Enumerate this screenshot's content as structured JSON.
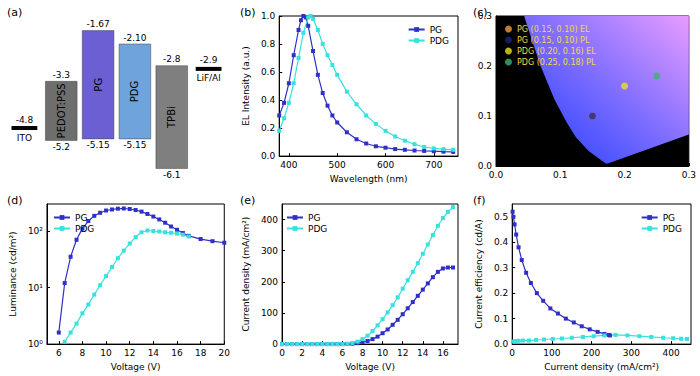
{
  "chart_data": [
    {
      "type": "energy_level",
      "title": "(a)",
      "ylim": [
        -6.6,
        -1.2
      ],
      "tick_labels": false,
      "layers": [
        {
          "name": "ITO",
          "level": -4.8,
          "color": "#000000"
        },
        {
          "name": "PEDOT:PSS",
          "lumo": -3.3,
          "homo": -5.2,
          "color": "#6e6e6e"
        },
        {
          "name": "PG",
          "lumo": -1.67,
          "homo": -5.15,
          "color": "#6b5fd3"
        },
        {
          "name": "PDG",
          "lumo": {
            "value": -2.1,
            "label": "-2.10"
          },
          "homo": -5.15,
          "color": "#6fa3dc"
        },
        {
          "name": "TPBi",
          "lumo": -2.8,
          "homo": -6.1,
          "color": "#7f7f7f"
        },
        {
          "name": "LiF/Al",
          "level": -2.9,
          "color": "#000000"
        }
      ]
    },
    {
      "type": "line",
      "title": "(b)",
      "x_label": "Wavelength (nm)",
      "y_label": "EL Intensity (a.u.)",
      "xlim": [
        380,
        750
      ],
      "xticks": [
        400,
        500,
        600,
        700
      ],
      "ylim": [
        0,
        1
      ],
      "yticks": [
        {
          "value": 0,
          "label": "0.0"
        },
        0.2,
        0.4,
        0.6,
        0.8,
        {
          "value": 1,
          "label": "1.0"
        }
      ],
      "grid": false,
      "legend": "top-right",
      "series": [
        {
          "name": "PG",
          "color": "#3030c8",
          "marker": "square",
          "x": [
            380,
            390,
            400,
            410,
            420,
            425,
            430,
            435,
            440,
            450,
            460,
            470,
            480,
            490,
            500,
            520,
            540,
            560,
            580,
            600,
            620,
            640,
            660,
            680,
            700,
            720,
            740
          ],
          "values": [
            0.29,
            0.38,
            0.52,
            0.72,
            0.9,
            0.97,
            1.0,
            0.99,
            0.93,
            0.75,
            0.58,
            0.45,
            0.36,
            0.29,
            0.24,
            0.17,
            0.12,
            0.09,
            0.07,
            0.06,
            0.05,
            0.045,
            0.04,
            0.037,
            0.035,
            0.032,
            0.03
          ]
        },
        {
          "name": "PDG",
          "color": "#38e0e0",
          "marker": "square",
          "x": [
            380,
            390,
            400,
            410,
            420,
            430,
            440,
            445,
            450,
            460,
            470,
            480,
            490,
            500,
            520,
            540,
            560,
            580,
            600,
            620,
            640,
            660,
            680,
            700,
            720,
            740
          ],
          "values": [
            0.18,
            0.27,
            0.38,
            0.52,
            0.7,
            0.88,
            0.99,
            1.0,
            0.98,
            0.9,
            0.8,
            0.72,
            0.65,
            0.58,
            0.46,
            0.37,
            0.29,
            0.23,
            0.18,
            0.14,
            0.11,
            0.085,
            0.065,
            0.055,
            0.05,
            0.045
          ]
        }
      ]
    },
    {
      "type": "cie",
      "title": "(c)",
      "xlim": [
        0,
        0.3
      ],
      "xticks": [
        {
          "value": 0,
          "label": "0.0"
        },
        0.1,
        0.2,
        0.3
      ],
      "ylim": [
        0,
        0.3
      ],
      "yticks": [
        {
          "value": 0,
          "label": "0.0"
        },
        0.1,
        0.2,
        0.3
      ],
      "legend": "top-left",
      "locus": {
        "x": [
          0.044,
          0.045,
          0.069,
          0.091,
          0.11,
          0.124,
          0.144,
          0.157,
          0.164,
          0.171,
          0.174,
          0.3
        ],
        "y": [
          0.3,
          0.295,
          0.201,
          0.133,
          0.087,
          0.058,
          0.03,
          0.018,
          0.011,
          0.005,
          0.005,
          0.063
        ]
      },
      "series": [
        {
          "name": "PG (0.15, 0.10) EL",
          "color": "#f39a3c",
          "marker": "circle",
          "x": [
            0.15
          ],
          "values": [
            0.1
          ]
        },
        {
          "name": "PG (0.15, 0.10) PL",
          "color": "#1a237e",
          "marker": "circle",
          "x": [
            0.15
          ],
          "values": [
            0.1
          ]
        },
        {
          "name": "PDG (0.20, 0.16) EL",
          "color": "#e8e020",
          "marker": "circle",
          "x": [
            0.2
          ],
          "values": [
            0.16
          ]
        },
        {
          "name": "PDG (0.25, 0.18) PL",
          "color": "#3cb371",
          "marker": "circle",
          "x": [
            0.25
          ],
          "values": [
            0.18
          ]
        }
      ]
    },
    {
      "type": "line",
      "title": "(d)",
      "x_label": "Voltage (V)",
      "y_label": "Luminance (cd/m²)",
      "log": "y",
      "xlim": [
        5,
        20
      ],
      "xticks": [
        6,
        8,
        10,
        12,
        14,
        16,
        18,
        20
      ],
      "ylim": [
        1,
        300
      ],
      "yticks": [
        {
          "value": 1,
          "label": "10⁰"
        },
        {
          "value": 10,
          "label": "10¹"
        },
        {
          "value": 100,
          "label": "10²"
        }
      ],
      "grid": false,
      "legend": "top-left",
      "series": [
        {
          "name": "PG",
          "color": "#3030c8",
          "marker": "square",
          "x": [
            6,
            6.5,
            7,
            7.5,
            8,
            8.5,
            9,
            9.5,
            10,
            10.5,
            11,
            11.5,
            12,
            12.5,
            13,
            13.5,
            14,
            14.5,
            15,
            15.5,
            16,
            16.5,
            17,
            18,
            19,
            20
          ],
          "values": [
            1.6,
            12,
            35,
            70,
            110,
            150,
            185,
            210,
            230,
            240,
            248,
            250,
            245,
            235,
            220,
            200,
            180,
            160,
            140,
            120,
            105,
            92,
            82,
            72,
            66,
            62
          ]
        },
        {
          "name": "PDG",
          "color": "#38e0e0",
          "marker": "square",
          "x": [
            6.5,
            7,
            7.5,
            8,
            8.5,
            9,
            9.5,
            10,
            10.5,
            11,
            11.5,
            12,
            12.5,
            13,
            13.5,
            14,
            14.5,
            15,
            15.5,
            16,
            16.5,
            17
          ],
          "values": [
            1.1,
            1.6,
            2.3,
            3.5,
            5,
            7.5,
            11,
            16,
            23,
            33,
            45,
            60,
            78,
            95,
            102,
            100,
            98,
            95,
            93,
            90,
            86,
            80
          ]
        }
      ]
    },
    {
      "type": "line",
      "title": "(e)",
      "x_label": "Voltage (V)",
      "y_label": "Current density (mA/cm²)",
      "xlim": [
        0,
        17.5
      ],
      "xticks": [
        0,
        2,
        4,
        6,
        8,
        10,
        12,
        14,
        16
      ],
      "ylim": [
        0,
        450
      ],
      "yticks": [
        0,
        100,
        200,
        300,
        400
      ],
      "grid": false,
      "legend": "top-left",
      "x": [
        0,
        0.5,
        1,
        1.5,
        2,
        2.5,
        3,
        3.5,
        4,
        4.5,
        5,
        5.5,
        6,
        6.5,
        7,
        7.5,
        8,
        8.5,
        9,
        9.5,
        10,
        10.5,
        11,
        11.5,
        12,
        12.5,
        13,
        13.5,
        14,
        14.5,
        15,
        15.5,
        16,
        16.5,
        17
      ],
      "series": [
        {
          "name": "PG",
          "color": "#3030c8",
          "marker": "square",
          "values": [
            0,
            0,
            0,
            0,
            0,
            0,
            0,
            0,
            0,
            0,
            0,
            0,
            0,
            0.5,
            1,
            3,
            6,
            10,
            16,
            24,
            35,
            47,
            62,
            78,
            96,
            115,
            135,
            155,
            175,
            195,
            215,
            232,
            243,
            246,
            246
          ]
        },
        {
          "name": "PDG",
          "color": "#38e0e0",
          "marker": "square",
          "values": [
            0,
            0,
            0,
            0,
            0,
            0,
            0,
            0,
            0,
            0,
            0,
            0,
            0,
            1,
            3,
            8,
            16,
            27,
            42,
            60,
            80,
            102,
            125,
            150,
            178,
            205,
            232,
            260,
            290,
            320,
            350,
            380,
            405,
            425,
            440
          ]
        }
      ]
    },
    {
      "type": "line",
      "title": "(f)",
      "x_label": "Current density (mA/cm²)",
      "y_label": "Current efficiency (cd/A)",
      "xlim": [
        0,
        450
      ],
      "xticks": [
        0,
        100,
        200,
        300,
        400
      ],
      "ylim": [
        0,
        0.55
      ],
      "yticks": [
        {
          "value": 0,
          "label": "0.0"
        },
        0.1,
        0.2,
        0.3,
        0.4,
        0.5
      ],
      "grid": false,
      "legend": "top-right",
      "series": [
        {
          "name": "PG",
          "color": "#3030c8",
          "marker": "square",
          "x": [
            1,
            3,
            6,
            10,
            16,
            24,
            35,
            47,
            62,
            78,
            96,
            115,
            135,
            155,
            175,
            195,
            215,
            232,
            243,
            246
          ],
          "values": [
            0.52,
            0.5,
            0.47,
            0.43,
            0.38,
            0.33,
            0.28,
            0.24,
            0.2,
            0.17,
            0.14,
            0.12,
            0.1,
            0.085,
            0.07,
            0.058,
            0.048,
            0.04,
            0.036,
            0.034
          ]
        },
        {
          "name": "PDG",
          "color": "#38e0e0",
          "marker": "square",
          "x": [
            3,
            8,
            16,
            27,
            42,
            60,
            80,
            102,
            125,
            150,
            178,
            205,
            232,
            260,
            290,
            320,
            350,
            380,
            405,
            425,
            440
          ],
          "values": [
            0.01,
            0.012,
            0.013,
            0.014,
            0.014,
            0.016,
            0.018,
            0.02,
            0.022,
            0.025,
            0.028,
            0.031,
            0.034,
            0.036,
            0.034,
            0.031,
            0.028,
            0.025,
            0.023,
            0.021,
            0.02
          ]
        }
      ]
    }
  ]
}
